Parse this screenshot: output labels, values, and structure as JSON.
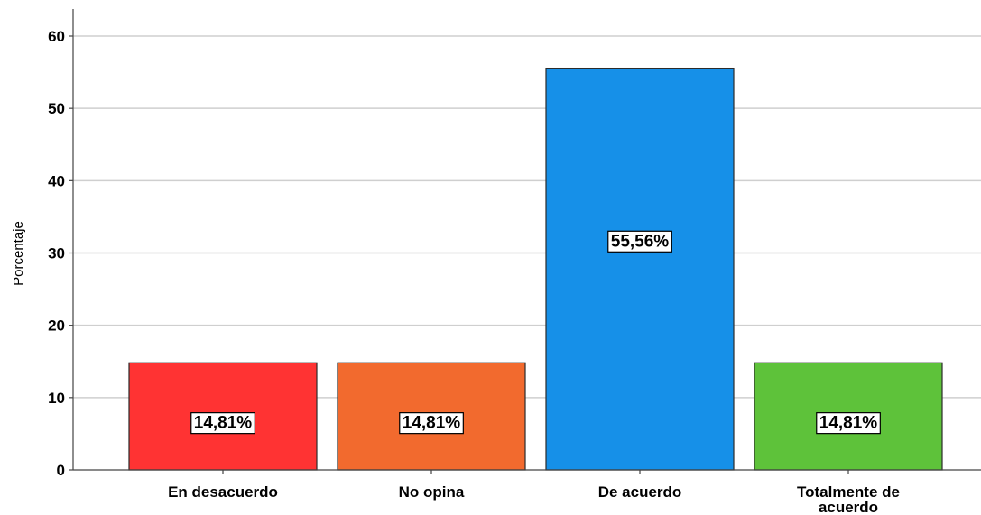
{
  "chart_data": {
    "type": "bar",
    "categories": [
      "En desacuerdo",
      "No opina",
      "De acuerdo",
      "Totalmente de acuerdo"
    ],
    "category_lines": [
      [
        "En desacuerdo"
      ],
      [
        "No opina"
      ],
      [
        "De acuerdo"
      ],
      [
        "Totalmente de",
        "acuerdo"
      ]
    ],
    "values": [
      14.81,
      14.81,
      55.56,
      14.81
    ],
    "data_labels": [
      "14,81%",
      "14,81%",
      "55,56%",
      "14,81%"
    ],
    "colors": [
      "#ff3333",
      "#f26a2e",
      "#1690e8",
      "#5ec23a"
    ],
    "ylabel": "Porcentaje",
    "ylim": [
      0,
      60
    ],
    "yticks": [
      0,
      10,
      20,
      30,
      40,
      50,
      60
    ],
    "grid": true,
    "legend": "none"
  }
}
